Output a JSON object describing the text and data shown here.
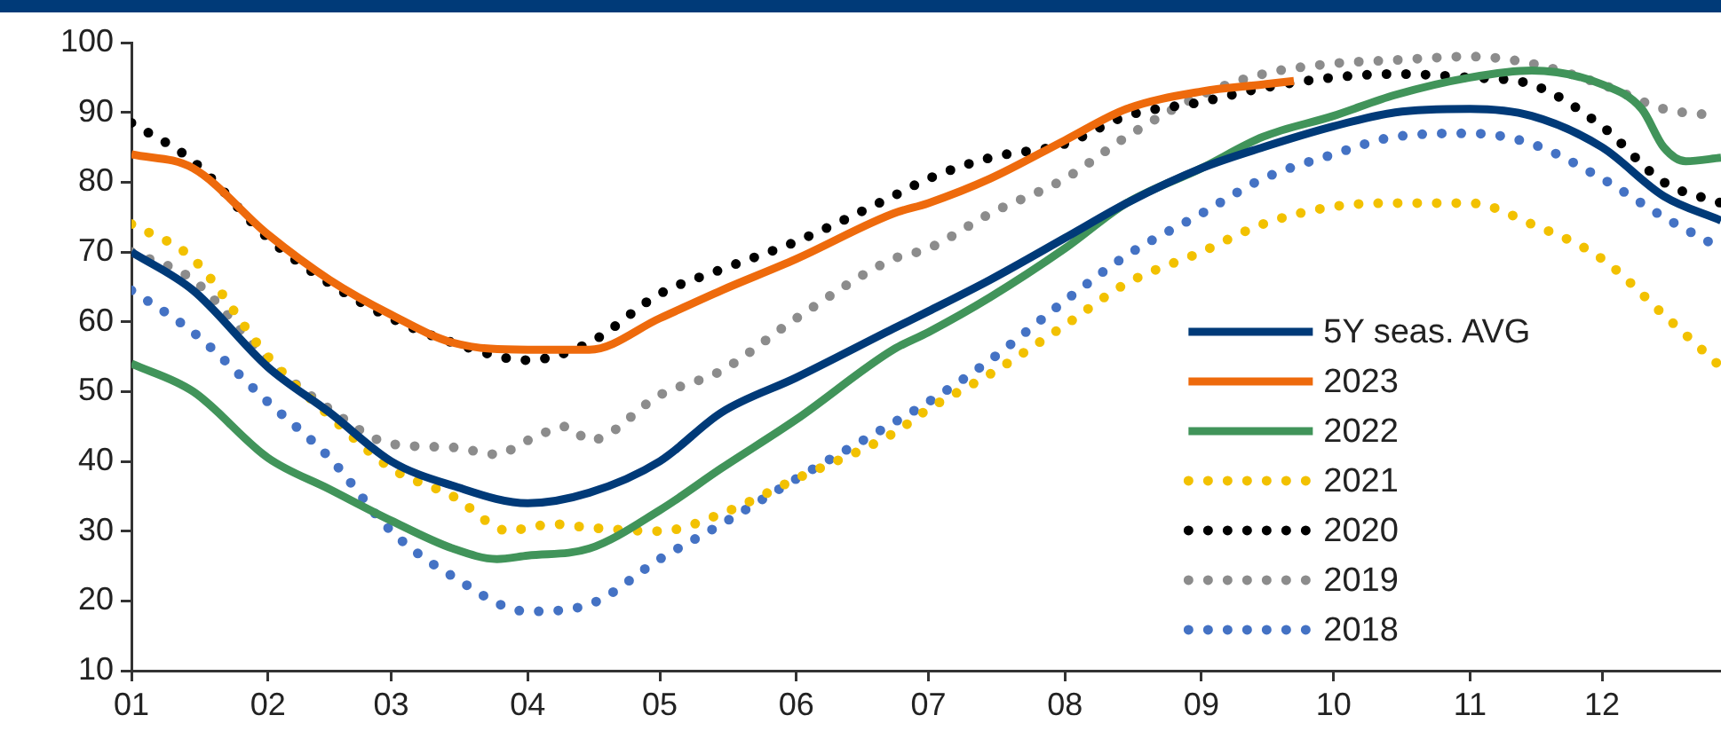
{
  "chart_data": {
    "type": "line",
    "xlim": [
      "--01-01",
      "--12-28"
    ],
    "ylim": [
      10,
      100
    ],
    "yticks": [
      10,
      20,
      30,
      40,
      50,
      60,
      70,
      80,
      90,
      100
    ],
    "xticks": [
      {
        "value": "--01-01",
        "label": "01"
      },
      {
        "value": "--02-01",
        "label": "02"
      },
      {
        "value": "--03-01",
        "label": "03"
      },
      {
        "value": "--04-01",
        "label": "04"
      },
      {
        "value": "--05-01",
        "label": "05"
      },
      {
        "value": "--06-01",
        "label": "06"
      },
      {
        "value": "--07-01",
        "label": "07"
      },
      {
        "value": "--08-01",
        "label": "08"
      },
      {
        "value": "--09-01",
        "label": "09"
      },
      {
        "value": "--10-01",
        "label": "10"
      },
      {
        "value": "--11-01",
        "label": "11"
      },
      {
        "value": "--12-01",
        "label": "12"
      }
    ],
    "grid": false,
    "legend": "bottom right",
    "x": [
      "--01-01",
      "--01-15",
      "--02-01",
      "--02-15",
      "--03-01",
      "--03-15",
      "--04-01",
      "--04-15",
      "--05-01",
      "--05-15",
      "--06-01",
      "--06-23",
      "--07-01",
      "--07-15",
      "--08-01",
      "--08-15",
      "--09-01",
      "--09-15",
      "--10-01",
      "--10-15",
      "--11-01",
      "--11-15",
      "--12-01",
      "--12-15",
      "--12-28"
    ],
    "series": [
      {
        "name": "5Y seas. AVG",
        "color": "#003a78",
        "line_style": "solid",
        "values": [
          70,
          64.5,
          53.5,
          47,
          40,
          36.5,
          34,
          35.5,
          40,
          47,
          52,
          59,
          61.5,
          66,
          72,
          77,
          82,
          85,
          88,
          90,
          90.5,
          89.5,
          85,
          78,
          74.5
        ]
      },
      {
        "name": "2023",
        "color": "#ee6a0c",
        "line_style": "solid",
        "x": [
          "--01-01",
          "--01-15",
          "--02-01",
          "--02-15",
          "--03-01",
          "--03-15",
          "--04-01",
          "--04-15",
          "--05-01",
          "--05-15",
          "--06-01",
          "--06-23",
          "--07-01",
          "--07-15",
          "--08-01",
          "--08-15",
          "--09-01",
          "--09-15",
          "--09-22"
        ],
        "values": [
          84,
          82,
          72.5,
          66,
          61,
          57,
          56,
          56,
          60.5,
          64.5,
          69,
          75.5,
          77,
          80.5,
          86,
          90.5,
          93,
          94,
          94.5
        ]
      },
      {
        "name": "2022",
        "color": "#41945a",
        "line_style": "solid",
        "x": [
          "--01-01",
          "--01-15",
          "--02-01",
          "--02-15",
          "--03-01",
          "--03-15",
          "--03-25",
          "--04-01",
          "--04-15",
          "--05-01",
          "--05-15",
          "--06-01",
          "--06-23",
          "--07-01",
          "--07-15",
          "--08-01",
          "--08-15",
          "--09-01",
          "--09-15",
          "--10-01",
          "--10-15",
          "--11-01",
          "--11-15",
          "--12-01",
          "--12-10",
          "--12-15",
          "--12-20",
          "--12-28"
        ],
        "values": [
          54,
          50,
          40.5,
          36,
          31.5,
          27.5,
          26,
          26.5,
          27.5,
          33,
          39,
          46,
          56,
          58.5,
          63.5,
          70.5,
          77,
          82,
          86.5,
          89.5,
          92.5,
          95,
          96,
          94,
          90.5,
          85,
          83,
          83.5
        ]
      },
      {
        "name": "2021",
        "color": "#f2c100",
        "line_style": "dotted",
        "x": [
          "--01-01",
          "--01-15",
          "--02-01",
          "--02-15",
          "--03-01",
          "--03-15",
          "--03-28",
          "--04-01",
          "--04-07",
          "--04-15",
          "--05-01",
          "--05-15",
          "--06-01",
          "--06-23",
          "--07-01",
          "--07-15",
          "--08-01",
          "--08-15",
          "--09-01",
          "--09-15",
          "--10-01",
          "--10-15",
          "--11-01",
          "--11-15",
          "--12-01",
          "--12-15",
          "--12-28"
        ],
        "values": [
          74,
          69,
          55,
          46.5,
          39,
          35,
          30,
          30.5,
          31,
          30.5,
          30,
          32.5,
          37.5,
          44,
          47.5,
          52.5,
          59.5,
          65.5,
          70,
          74,
          76.5,
          77,
          77,
          74,
          69,
          61,
          53.5
        ]
      },
      {
        "name": "2020",
        "color": "#000000",
        "line_style": "dotted",
        "values": [
          88.5,
          83,
          72,
          65.5,
          60.5,
          57,
          54.5,
          57,
          64,
          67.5,
          71.5,
          78,
          80.5,
          83.5,
          85.5,
          89.5,
          91.5,
          93.5,
          95,
          95.5,
          95,
          94,
          88,
          80,
          77
        ]
      },
      {
        "name": "2019",
        "color": "#8c8c8c",
        "line_style": "dotted",
        "x": [
          "--01-01",
          "--01-15",
          "--02-01",
          "--02-15",
          "--03-01",
          "--03-15",
          "--03-25",
          "--04-01",
          "--04-10",
          "--04-15",
          "--05-01",
          "--05-15",
          "--06-01",
          "--06-23",
          "--07-01",
          "--07-15",
          "--08-01",
          "--08-15",
          "--09-01",
          "--09-15",
          "--10-01",
          "--10-15",
          "--11-01",
          "--11-15",
          "--12-01",
          "--12-15",
          "--12-28"
        ],
        "values": [
          70,
          66,
          54.5,
          47.5,
          42.5,
          42,
          41,
          43,
          45,
          43,
          49.5,
          53,
          60.5,
          69,
          70.5,
          75.5,
          80.5,
          86.5,
          92.5,
          95.5,
          97,
          97.5,
          98,
          97,
          94,
          90.5,
          89.5
        ]
      },
      {
        "name": "2018",
        "color": "#4472c4",
        "line_style": "dotted",
        "values": [
          64.5,
          58.5,
          48.5,
          40.5,
          30,
          23.5,
          18.5,
          19.5,
          26,
          31,
          37.5,
          45.5,
          48.5,
          54.5,
          63,
          69.5,
          75.5,
          80.5,
          84,
          86.5,
          87,
          85.5,
          80.5,
          75,
          70.5
        ]
      }
    ]
  }
}
